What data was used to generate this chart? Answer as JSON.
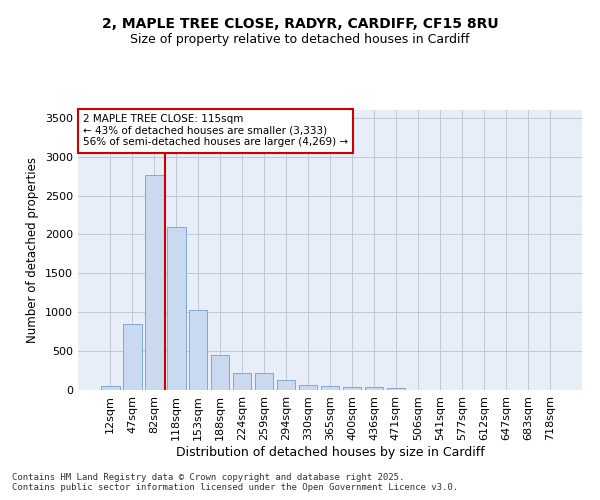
{
  "title_line1": "2, MAPLE TREE CLOSE, RADYR, CARDIFF, CF15 8RU",
  "title_line2": "Size of property relative to detached houses in Cardiff",
  "xlabel": "Distribution of detached houses by size in Cardiff",
  "ylabel": "Number of detached properties",
  "categories": [
    "12sqm",
    "47sqm",
    "82sqm",
    "118sqm",
    "153sqm",
    "188sqm",
    "224sqm",
    "259sqm",
    "294sqm",
    "330sqm",
    "365sqm",
    "400sqm",
    "436sqm",
    "471sqm",
    "506sqm",
    "541sqm",
    "577sqm",
    "612sqm",
    "647sqm",
    "683sqm",
    "718sqm"
  ],
  "values": [
    55,
    850,
    2760,
    2100,
    1030,
    450,
    215,
    215,
    130,
    60,
    50,
    40,
    35,
    20,
    5,
    5,
    0,
    0,
    0,
    0,
    0
  ],
  "bar_color": "#c9d9f0",
  "bar_edge_color": "#7fa8d4",
  "vline_x_index": 3,
  "vline_color": "#cc0000",
  "annotation_text": "2 MAPLE TREE CLOSE: 115sqm\n← 43% of detached houses are smaller (3,333)\n56% of semi-detached houses are larger (4,269) →",
  "annotation_box_color": "#cc0000",
  "annotation_bg": "#ffffff",
  "ylim": [
    0,
    3600
  ],
  "yticks": [
    0,
    500,
    1000,
    1500,
    2000,
    2500,
    3000,
    3500
  ],
  "grid_color": "#c0c8d8",
  "bg_color": "#e8eef8",
  "footer_line1": "Contains HM Land Registry data © Crown copyright and database right 2025.",
  "footer_line2": "Contains public sector information licensed under the Open Government Licence v3.0."
}
